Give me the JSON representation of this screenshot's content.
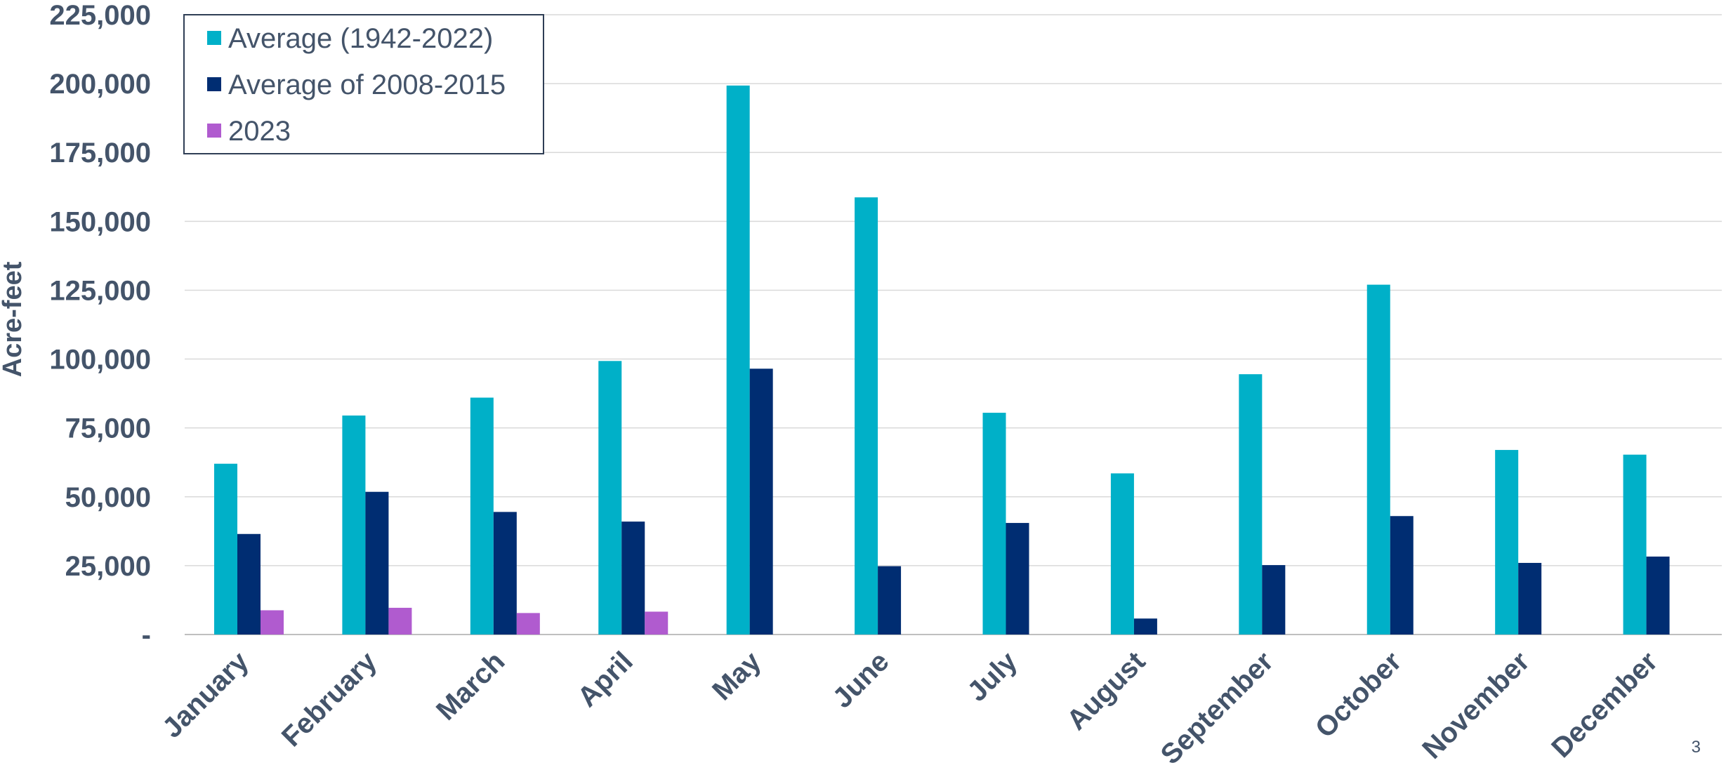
{
  "chart_data": {
    "type": "bar",
    "title": "",
    "ylabel": "Acre-feet",
    "xlabel": "",
    "ylim": [
      0,
      225000
    ],
    "yticks": [
      0,
      25000,
      50000,
      75000,
      100000,
      125000,
      150000,
      175000,
      200000,
      225000
    ],
    "ytick_labels": [
      "-",
      "25,000",
      "50,000",
      "75,000",
      "100,000",
      "125,000",
      "150,000",
      "175,000",
      "200,000",
      "225,000"
    ],
    "grid": true,
    "legend_position": "top-left",
    "categories": [
      "January",
      "February",
      "March",
      "April",
      "May",
      "June",
      "July",
      "August",
      "September",
      "October",
      "November",
      "December"
    ],
    "series": [
      {
        "name": "Average (1942-2022)",
        "color": "#00B0C8",
        "values": [
          62000,
          79500,
          86000,
          99300,
          199300,
          158700,
          80500,
          58500,
          94500,
          127000,
          67000,
          65300
        ]
      },
      {
        "name": "Average of 2008-2015",
        "color": "#002D72",
        "values": [
          36500,
          51800,
          44500,
          41000,
          96500,
          24800,
          40500,
          5800,
          25200,
          43000,
          26000,
          28300
        ]
      },
      {
        "name": "2023",
        "color": "#B05BCF",
        "values": [
          8800,
          9700,
          7800,
          8300,
          null,
          null,
          null,
          null,
          null,
          null,
          null,
          null
        ]
      }
    ]
  },
  "page_number": "3"
}
